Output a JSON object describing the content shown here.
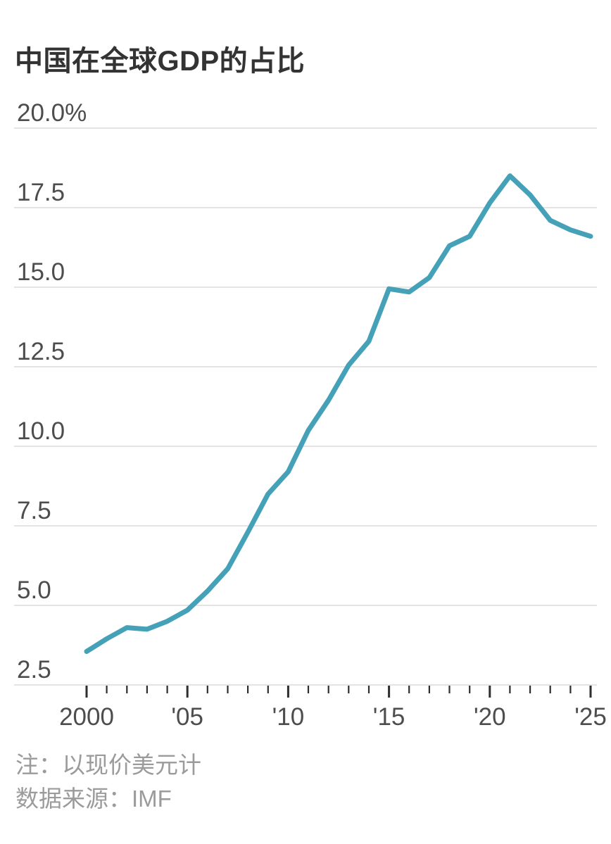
{
  "page": {
    "title": "中国在全球GDP的占比"
  },
  "chart_data": {
    "type": "line",
    "title": "中国在全球GDP的占比",
    "unit": "%",
    "series_name": "中国在全球GDP的占比",
    "x": [
      2000,
      2001,
      2002,
      2003,
      2004,
      2005,
      2006,
      2007,
      2008,
      2009,
      2010,
      2011,
      2012,
      2013,
      2014,
      2015,
      2016,
      2017,
      2018,
      2019,
      2020,
      2021,
      2022,
      2023,
      2024,
      2025
    ],
    "values": [
      3.55,
      3.95,
      4.3,
      4.25,
      4.5,
      4.85,
      5.45,
      6.15,
      7.3,
      8.5,
      9.2,
      10.5,
      11.45,
      12.55,
      13.3,
      14.95,
      14.85,
      15.3,
      16.3,
      16.6,
      17.65,
      18.5,
      17.9,
      17.1,
      16.8,
      16.6
    ],
    "xlabel": "",
    "ylabel": "",
    "xlim": [
      2000,
      2025
    ],
    "ylim": [
      2.5,
      20.0
    ],
    "y_ticks": [
      2.5,
      5.0,
      7.5,
      10.0,
      12.5,
      15.0,
      17.5,
      20.0
    ],
    "y_tick_labels": [
      "2.5",
      "5.0",
      "7.5",
      "10.0",
      "12.5",
      "15.0",
      "17.5",
      "20.0%"
    ],
    "x_tick_years": [
      2000,
      2001,
      2002,
      2003,
      2004,
      2005,
      2006,
      2007,
      2008,
      2009,
      2010,
      2011,
      2012,
      2013,
      2014,
      2015,
      2016,
      2017,
      2018,
      2019,
      2020,
      2021,
      2022,
      2023,
      2024,
      2025
    ],
    "x_major_tick_years": [
      2000,
      2005,
      2010,
      2015,
      2020,
      2025
    ],
    "x_tick_labels": [
      {
        "year": 2000,
        "label": "2000"
      },
      {
        "year": 2005,
        "label": "'05"
      },
      {
        "year": 2010,
        "label": "'10"
      },
      {
        "year": 2015,
        "label": "'15"
      },
      {
        "year": 2020,
        "label": "'20"
      },
      {
        "year": 2025,
        "label": "'25"
      }
    ],
    "grid": true,
    "legend": "none",
    "line_color": "#45a1b8",
    "grid_color": "#dcdcdc",
    "tick_color": "#2e2e2e",
    "axis_label_color": "#4d4d4d",
    "title_color": "#333333",
    "note_color": "#9b9b9b",
    "notes": [
      "注：以现价美元计",
      "数据来源：IMF"
    ]
  }
}
